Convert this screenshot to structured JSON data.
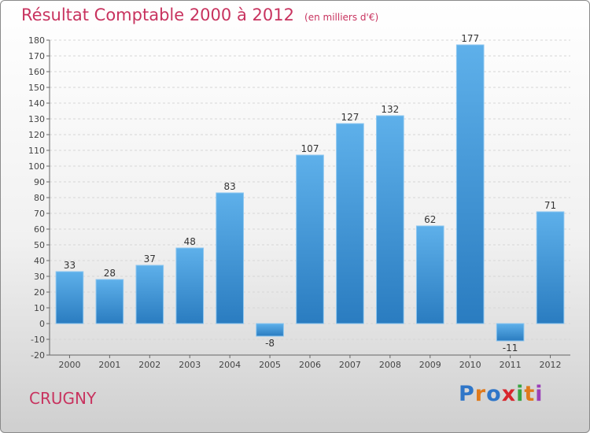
{
  "header": {
    "title": "Résultat Comptable 2000 à 2012",
    "subtitle": "(en milliers d'€)"
  },
  "footer": {
    "town": "CRUGNY",
    "brand_letters": [
      "P",
      "r",
      "o",
      "x",
      "i",
      "t",
      "i"
    ],
    "brand_colors": [
      "#2f76c8",
      "#e07a1c",
      "#2f76c8",
      "#d8262d",
      "#3aa442",
      "#e07a1c",
      "#9b3fb8"
    ]
  },
  "chart_data": {
    "type": "bar",
    "categories": [
      "2000",
      "2001",
      "2002",
      "2003",
      "2004",
      "2005",
      "2006",
      "2007",
      "2008",
      "2009",
      "2010",
      "2011",
      "2012"
    ],
    "values": [
      33,
      28,
      37,
      48,
      83,
      -8,
      107,
      127,
      132,
      62,
      177,
      -11,
      71
    ],
    "data_labels": [
      "33",
      "28",
      "37",
      "48",
      "83",
      "-8",
      "107",
      "127",
      "132",
      "62",
      "177",
      "-11",
      "71"
    ],
    "ylim": [
      -20,
      180
    ],
    "yticks": [
      -20,
      -10,
      0,
      10,
      20,
      30,
      40,
      50,
      60,
      70,
      80,
      90,
      100,
      110,
      120,
      130,
      140,
      150,
      160,
      170,
      180
    ],
    "grid": true,
    "bar_color_top": "#5eb0ea",
    "bar_color_bottom": "#2a7cc0"
  }
}
